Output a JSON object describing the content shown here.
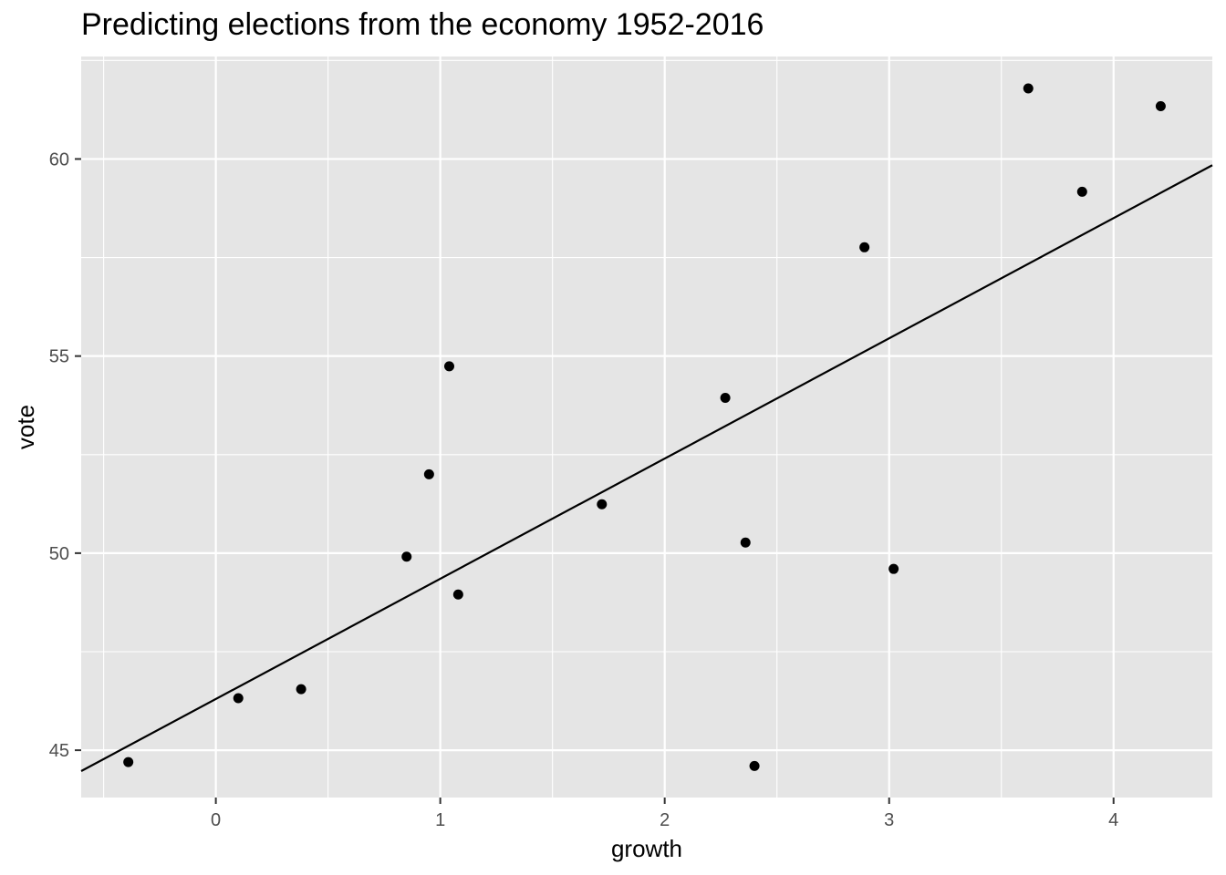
{
  "chart_data": {
    "type": "scatter",
    "title": "Predicting elections from the economy 1952-2016",
    "xlabel": "growth",
    "ylabel": "vote",
    "xlim": [
      -0.6,
      4.44
    ],
    "ylim": [
      43.8,
      62.6
    ],
    "x_ticks": [
      0,
      1,
      2,
      3,
      4
    ],
    "y_ticks": [
      45,
      50,
      55,
      60
    ],
    "x_tick_labels": [
      "0",
      "1",
      "2",
      "3",
      "4"
    ],
    "y_tick_labels": [
      "45",
      "50",
      "55",
      "60"
    ],
    "grid": true,
    "background": "#e5e5e5",
    "grid_color": "#ffffff",
    "point_color": "#000000",
    "line_color": "#000000",
    "points": [
      {
        "x": 2.4,
        "y": 44.6
      },
      {
        "x": 2.89,
        "y": 57.76
      },
      {
        "x": 0.85,
        "y": 49.91
      },
      {
        "x": 4.21,
        "y": 61.34
      },
      {
        "x": 3.02,
        "y": 49.6
      },
      {
        "x": 3.62,
        "y": 61.79
      },
      {
        "x": 1.08,
        "y": 48.95
      },
      {
        "x": -0.39,
        "y": 44.7
      },
      {
        "x": 3.86,
        "y": 59.17
      },
      {
        "x": 2.27,
        "y": 53.94
      },
      {
        "x": 0.38,
        "y": 46.55
      },
      {
        "x": 1.04,
        "y": 54.74
      },
      {
        "x": 2.36,
        "y": 50.27
      },
      {
        "x": 1.72,
        "y": 51.24
      },
      {
        "x": 0.1,
        "y": 46.32
      },
      {
        "x": 0.95,
        "y": 52.0
      }
    ],
    "regression_line": {
      "intercept": 46.3,
      "slope": 3.05
    }
  }
}
